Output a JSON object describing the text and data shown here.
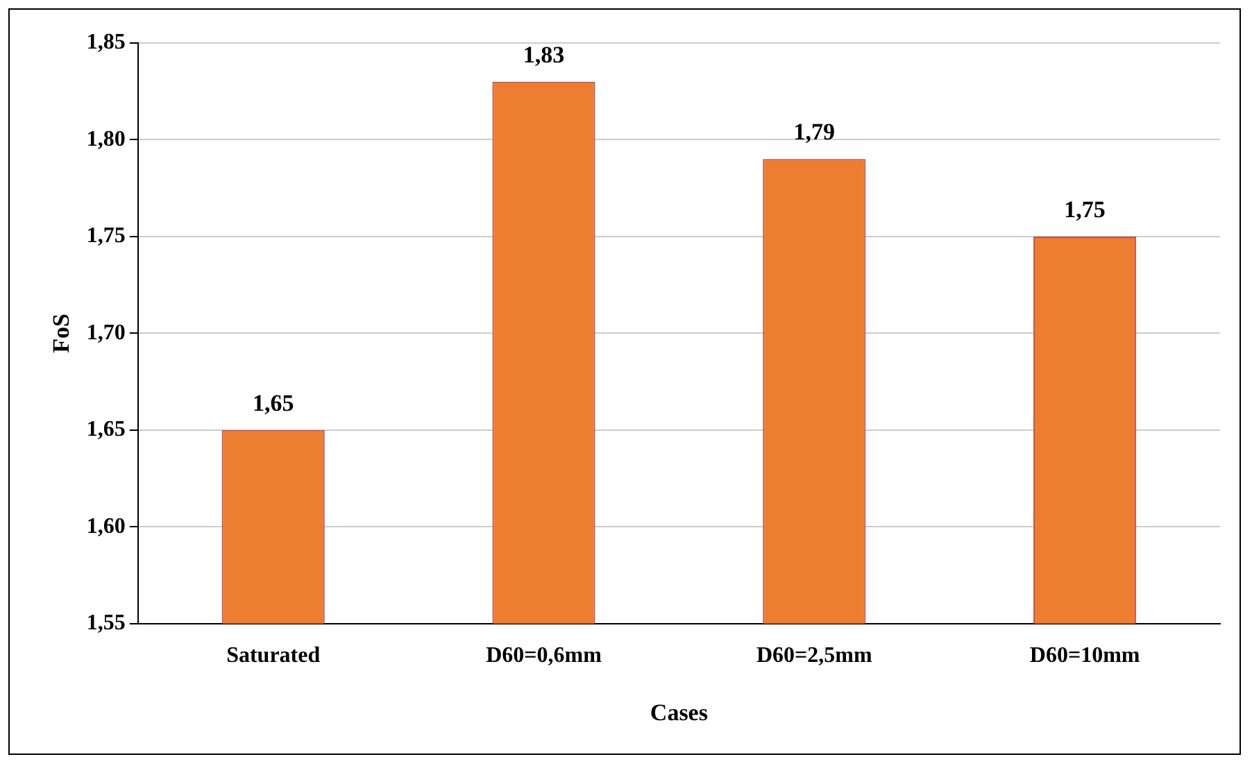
{
  "chart_data": {
    "type": "bar",
    "xlabel": "Cases",
    "ylabel": "FoS",
    "categories": [
      "Saturated",
      "D60=0,6mm",
      "D60=2,5mm",
      "D60=10mm"
    ],
    "values": [
      1.65,
      1.83,
      1.79,
      1.75
    ],
    "value_labels": [
      "1,65",
      "1,83",
      "1,79",
      "1,75"
    ],
    "color": "#ed7d31",
    "ylim": [
      1.55,
      1.85
    ],
    "yticks": [
      {
        "value": 1.55,
        "label": "1,55"
      },
      {
        "value": 1.6,
        "label": "1,60"
      },
      {
        "value": 1.65,
        "label": "1,65"
      },
      {
        "value": 1.7,
        "label": "1,70"
      },
      {
        "value": 1.75,
        "label": "1,75"
      },
      {
        "value": 1.8,
        "label": "1,80"
      },
      {
        "value": 1.85,
        "label": "1,85"
      }
    ],
    "grid": "y"
  }
}
